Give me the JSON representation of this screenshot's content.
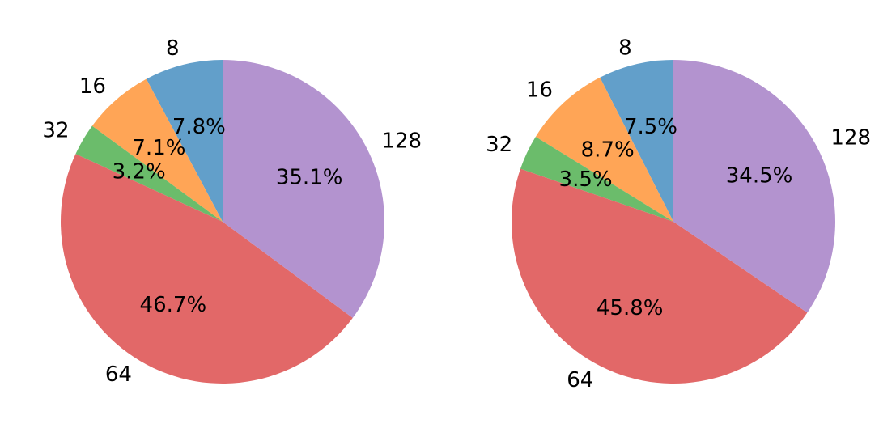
{
  "chart_data": [
    {
      "type": "pie",
      "categories": [
        "8",
        "16",
        "32",
        "64",
        "128"
      ],
      "values": [
        7.8,
        7.1,
        3.2,
        46.7,
        35.1
      ],
      "pct_labels": [
        "7.8%",
        "7.1%",
        "3.2%",
        "46.7%",
        "35.1%"
      ],
      "colors": [
        "#629fca",
        "#ffa556",
        "#6bbc6b",
        "#e26868",
        "#b393cf"
      ],
      "start_angle": 90,
      "direction": "counterclockwise"
    },
    {
      "type": "pie",
      "categories": [
        "8",
        "16",
        "32",
        "64",
        "128"
      ],
      "values": [
        7.5,
        8.7,
        3.5,
        45.8,
        34.5
      ],
      "pct_labels": [
        "7.5%",
        "8.7%",
        "3.5%",
        "45.8%",
        "34.5%"
      ],
      "colors": [
        "#629fca",
        "#ffa556",
        "#6bbc6b",
        "#e26868",
        "#b393cf"
      ],
      "start_angle": 90,
      "direction": "counterclockwise"
    }
  ]
}
